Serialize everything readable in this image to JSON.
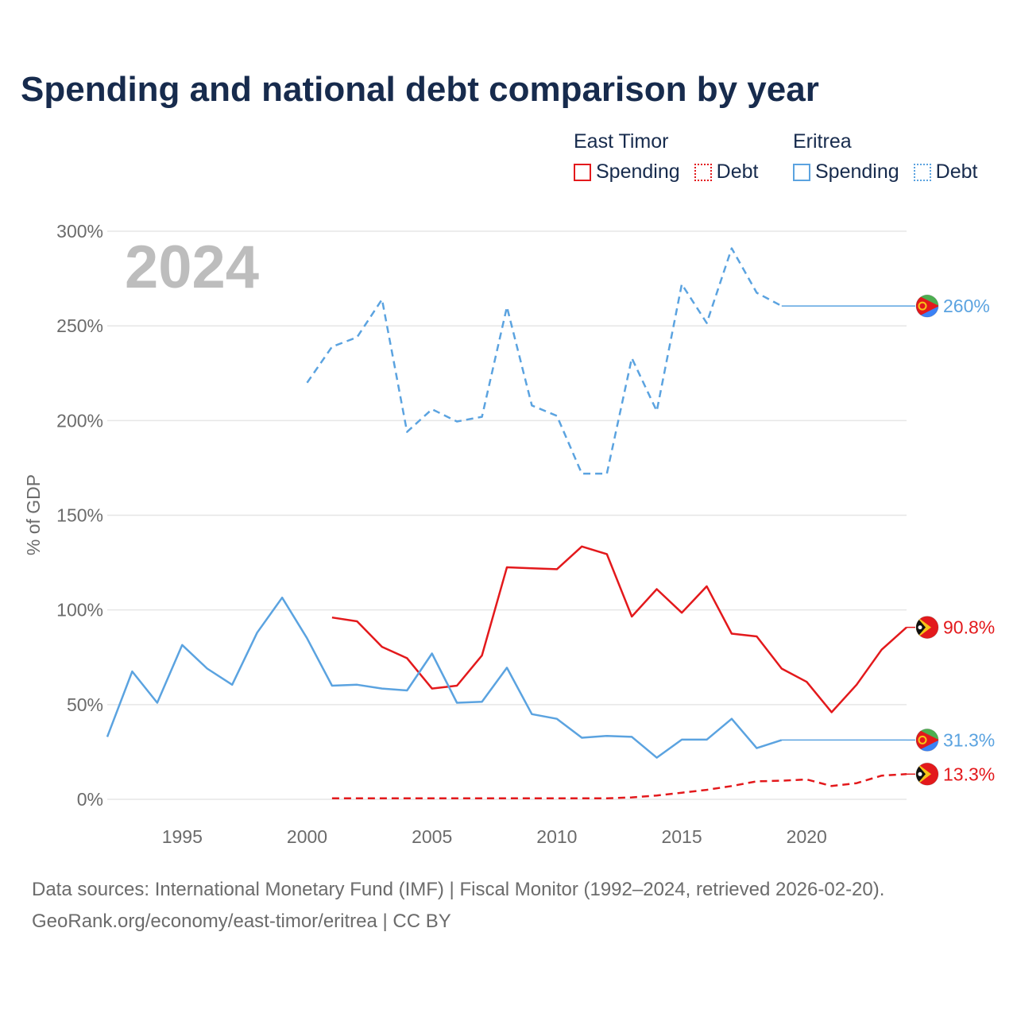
{
  "chart_data": {
    "type": "line",
    "title": "Spending and national debt comparison by year",
    "ylabel": "% of GDP",
    "xlabel": "",
    "xlim": [
      1992,
      2024
    ],
    "ylim": [
      0,
      300
    ],
    "x_ticks": [
      1995,
      2000,
      2005,
      2010,
      2015,
      2020
    ],
    "y_ticks": [
      0,
      50,
      100,
      150,
      200,
      250,
      300
    ],
    "y_tick_labels": [
      "0%",
      "50%",
      "100%",
      "150%",
      "200%",
      "250%",
      "300%"
    ],
    "grid": true,
    "year_watermark": "2024",
    "legend": {
      "placement": "top-right",
      "groups": [
        {
          "country": "East Timor",
          "items": [
            {
              "label": "Spending",
              "color": "#e3191c",
              "style": "solid"
            },
            {
              "label": "Debt",
              "color": "#e3191c",
              "style": "dotted"
            }
          ]
        },
        {
          "country": "Eritrea",
          "items": [
            {
              "label": "Spending",
              "color": "#5ba3e0",
              "style": "solid"
            },
            {
              "label": "Debt",
              "color": "#5ba3e0",
              "style": "dotted"
            }
          ]
        }
      ]
    },
    "series": [
      {
        "name": "Eritrea Debt",
        "country": "Eritrea",
        "color": "#5ba3e0",
        "dash": true,
        "x": [
          2000,
          2001,
          2002,
          2003,
          2004,
          2005,
          2006,
          2007,
          2008,
          2009,
          2010,
          2011,
          2012,
          2013,
          2014,
          2015,
          2016,
          2017,
          2018,
          2019
        ],
        "values": [
          220,
          239,
          244,
          264,
          194,
          206,
          199.5,
          202,
          260,
          208,
          202.5,
          172,
          172,
          233,
          205,
          272,
          251.5,
          291,
          267.5,
          260.5
        ],
        "extend_to": 2024,
        "end_label": "260%"
      },
      {
        "name": "East Timor Spending",
        "country": "East Timor",
        "color": "#e3191c",
        "dash": false,
        "x": [
          2001,
          2002,
          2003,
          2004,
          2005,
          2006,
          2007,
          2008,
          2009,
          2010,
          2011,
          2012,
          2013,
          2014,
          2015,
          2016,
          2017,
          2018,
          2019,
          2020,
          2021,
          2022,
          2023,
          2024
        ],
        "values": [
          96,
          94,
          80.5,
          74.5,
          58.5,
          60,
          76,
          122.5,
          122,
          121.5,
          133.5,
          129.5,
          96.5,
          111,
          98.5,
          112.5,
          87.5,
          86,
          69,
          62,
          46,
          60.5,
          79,
          90.8
        ],
        "end_label": "90.8%"
      },
      {
        "name": "Eritrea Spending",
        "country": "Eritrea",
        "color": "#5ba3e0",
        "dash": false,
        "x": [
          1992,
          1993,
          1994,
          1995,
          1996,
          1997,
          1998,
          1999,
          2000,
          2001,
          2002,
          2003,
          2004,
          2005,
          2006,
          2007,
          2008,
          2009,
          2010,
          2011,
          2012,
          2013,
          2014,
          2015,
          2016,
          2017,
          2018,
          2019
        ],
        "values": [
          33,
          67.5,
          51,
          81.5,
          69,
          60.5,
          88,
          106.5,
          85,
          60,
          60.5,
          58.5,
          57.5,
          77,
          51,
          51.5,
          69.5,
          45,
          42.5,
          32.5,
          33.5,
          33,
          22,
          31.5,
          31.5,
          42.5,
          27,
          31.3
        ],
        "extend_to": 2024,
        "end_label": "31.3%"
      },
      {
        "name": "East Timor Debt",
        "country": "East Timor",
        "color": "#e3191c",
        "dash": true,
        "x": [
          2001,
          2002,
          2003,
          2004,
          2005,
          2006,
          2007,
          2008,
          2009,
          2010,
          2011,
          2012,
          2013,
          2014,
          2015,
          2016,
          2017,
          2018,
          2019,
          2020,
          2021,
          2022,
          2023,
          2024
        ],
        "values": [
          0.5,
          0.5,
          0.5,
          0.5,
          0.5,
          0.5,
          0.5,
          0.5,
          0.5,
          0.5,
          0.5,
          0.5,
          1,
          2,
          3.5,
          5,
          7,
          9.5,
          9.8,
          10.5,
          7,
          8.5,
          12.5,
          13.3
        ],
        "end_label": "13.3%"
      }
    ]
  },
  "footer": {
    "sources": "Data sources: International Monetary Fund (IMF) | Fiscal Monitor (1992–2024, retrieved 2026-02-20).",
    "credit": "GeoRank.org/economy/east-timor/eritrea | CC BY"
  }
}
